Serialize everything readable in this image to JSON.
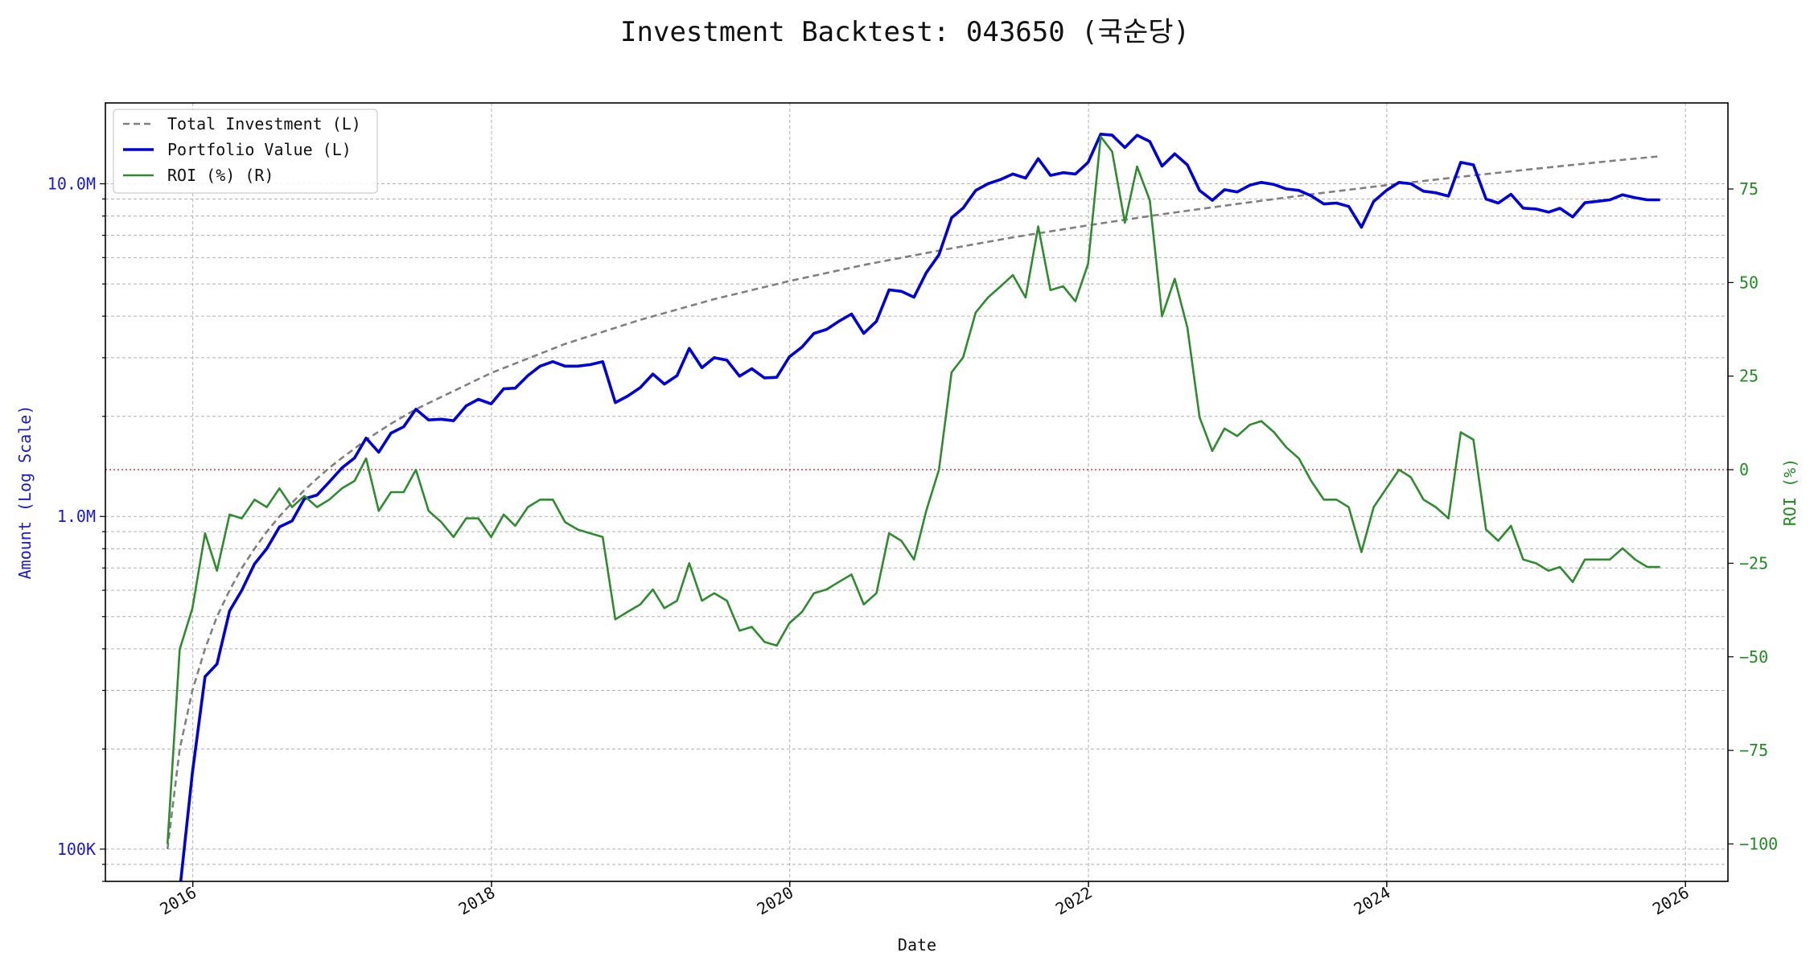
{
  "chart_data": {
    "type": "line",
    "title": "Investment Backtest: 043650 (국순당)",
    "xlabel": "Date",
    "ylabel_left": "Amount (Log Scale)",
    "ylabel_right": "ROI (%)",
    "yscale_left": "log",
    "ylim_left": [
      80000,
      17500000
    ],
    "ylim_right": [
      -110,
      98
    ],
    "xlim": [
      "2015-06-01",
      "2026-04-15"
    ],
    "x_ticks": [
      "2016",
      "2018",
      "2020",
      "2022",
      "2024",
      "2026"
    ],
    "left_ticks": [
      {
        "value": 100000,
        "label": "100K"
      },
      {
        "value": 1000000,
        "label": "1.0M"
      },
      {
        "value": 10000000,
        "label": "10.0M"
      }
    ],
    "right_ticks": [
      {
        "value": -100,
        "label": "−100"
      },
      {
        "value": -75,
        "label": "−75"
      },
      {
        "value": -50,
        "label": "−50"
      },
      {
        "value": -25,
        "label": "−25"
      },
      {
        "value": 0,
        "label": "0"
      },
      {
        "value": 25,
        "label": "25"
      },
      {
        "value": 50,
        "label": "50"
      },
      {
        "value": 75,
        "label": "75"
      }
    ],
    "grid": true,
    "legend_position": "top-left",
    "reference_line": {
      "axis": "right",
      "value": 0,
      "color": "#dd2222",
      "style": "dotted"
    },
    "colors": {
      "total_investment": "#808080",
      "portfolio_value": "#0000dd",
      "roi": "#2e8b2e",
      "left_axis": "#1a1acc",
      "right_axis": "#228b22"
    },
    "series": [
      {
        "name": "Total Investment (L)",
        "axis": "left",
        "style": "dashed",
        "x": [
          "2015-10-31",
          "2015-11-30",
          "2015-12-31",
          "2016-01-31",
          "2016-02-29",
          "2016-03-31",
          "2016-04-30",
          "2016-05-31",
          "2016-06-30",
          "2016-07-31",
          "2016-08-31",
          "2016-09-30",
          "2016-10-31",
          "2016-11-30",
          "2016-12-31",
          "2017-01-31",
          "2017-02-28",
          "2017-03-31",
          "2017-04-30",
          "2017-05-31",
          "2017-06-30",
          "2017-12-31",
          "2018-06-30",
          "2018-12-31",
          "2019-06-30",
          "2019-12-31",
          "2020-06-30",
          "2020-12-31",
          "2021-06-30",
          "2021-12-31",
          "2022-06-30",
          "2022-12-31",
          "2023-06-30",
          "2023-12-31",
          "2024-06-30",
          "2024-12-31",
          "2025-06-30",
          "2025-10-31"
        ],
        "values": [
          100000,
          200000,
          300000,
          400000,
          500000,
          600000,
          700000,
          800000,
          900000,
          1000000,
          1100000,
          1200000,
          1300000,
          1400000,
          1500000,
          1600000,
          1700000,
          1800000,
          1900000,
          2000000,
          2100000,
          2700000,
          3300000,
          3900000,
          4500000,
          5100000,
          5700000,
          6300000,
          6900000,
          7500000,
          8100000,
          8700000,
          9300000,
          9900000,
          10500000,
          11100000,
          11700000,
          12100000
        ]
      },
      {
        "name": "Portfolio Value (L)",
        "axis": "left",
        "style": "solid",
        "x": [
          "2015-11-30",
          "2015-12-31",
          "2016-01-31",
          "2016-02-29",
          "2016-03-31",
          "2016-04-30",
          "2016-05-31",
          "2016-06-30",
          "2016-07-31",
          "2016-08-31",
          "2016-09-30",
          "2016-10-31",
          "2016-11-30",
          "2016-12-31",
          "2017-01-31",
          "2017-02-28",
          "2017-03-31",
          "2017-04-30",
          "2017-05-31",
          "2017-06-30",
          "2017-07-31",
          "2017-08-31",
          "2017-09-30",
          "2017-10-31",
          "2017-11-30",
          "2017-12-31",
          "2018-01-31",
          "2018-02-28",
          "2018-03-31",
          "2018-04-30",
          "2018-05-31",
          "2018-06-30",
          "2018-07-31",
          "2018-08-31",
          "2018-09-30",
          "2018-10-31",
          "2018-11-30",
          "2018-12-31",
          "2019-01-31",
          "2019-02-28",
          "2019-03-31",
          "2019-04-30",
          "2019-05-31",
          "2019-06-30",
          "2019-07-31",
          "2019-08-31",
          "2019-09-30",
          "2019-10-31",
          "2019-11-30",
          "2019-12-31",
          "2020-01-31",
          "2020-02-29",
          "2020-03-31",
          "2020-04-30",
          "2020-05-31",
          "2020-06-30",
          "2020-07-31",
          "2020-08-31",
          "2020-09-30",
          "2020-10-31",
          "2020-11-30",
          "2020-12-31",
          "2021-01-31",
          "2021-02-28",
          "2021-03-31",
          "2021-04-30",
          "2021-05-31",
          "2021-06-30",
          "2021-07-31",
          "2021-08-31",
          "2021-09-30",
          "2021-10-31",
          "2021-11-30",
          "2021-12-31",
          "2022-01-31",
          "2022-02-28",
          "2022-03-31",
          "2022-04-30",
          "2022-05-31",
          "2022-06-30",
          "2022-07-31",
          "2022-08-31",
          "2022-09-30",
          "2022-10-31",
          "2022-11-30",
          "2022-12-31",
          "2023-01-31",
          "2023-02-28",
          "2023-03-31",
          "2023-04-30",
          "2023-05-31",
          "2023-06-30",
          "2023-07-31",
          "2023-08-31",
          "2023-09-30",
          "2023-10-31",
          "2023-11-30",
          "2023-12-31",
          "2024-01-31",
          "2024-02-29",
          "2024-03-31",
          "2024-04-30",
          "2024-05-31",
          "2024-06-30",
          "2024-07-31",
          "2024-08-31",
          "2024-09-30",
          "2024-10-31",
          "2024-11-30",
          "2024-12-31",
          "2025-01-31",
          "2025-02-28",
          "2025-03-31",
          "2025-04-30",
          "2025-05-31",
          "2025-06-30",
          "2025-07-31",
          "2025-08-31",
          "2025-09-30",
          "2025-10-31"
        ],
        "values": [
          75000,
          170000,
          330000,
          360000,
          520000,
          600000,
          720000,
          800000,
          930000,
          970000,
          1130000,
          1160000,
          1270000,
          1400000,
          1500000,
          1720000,
          1560000,
          1780000,
          1860000,
          2100000,
          1950000,
          1960000,
          1940000,
          2150000,
          2250000,
          2180000,
          2420000,
          2430000,
          2650000,
          2830000,
          2920000,
          2830000,
          2830000,
          2860000,
          2920000,
          2200000,
          2300000,
          2440000,
          2680000,
          2500000,
          2650000,
          3200000,
          2800000,
          3000000,
          2950000,
          2640000,
          2780000,
          2610000,
          2620000,
          3020000,
          3230000,
          3550000,
          3650000,
          3860000,
          4060000,
          3550000,
          3860000,
          4800000,
          4750000,
          4560000,
          5400000,
          6120000,
          7900000,
          8450000,
          9550000,
          10000000,
          10300000,
          10700000,
          10400000,
          11900000,
          10600000,
          10800000,
          10700000,
          11600000,
          14100000,
          14000000,
          12850000,
          14000000,
          13400000,
          11300000,
          12300000,
          11400000,
          9550000,
          8920000,
          9600000,
          9450000,
          9900000,
          10100000,
          9950000,
          9650000,
          9550000,
          9200000,
          8700000,
          8750000,
          8550000,
          7400000,
          8850000,
          9550000,
          10100000,
          10000000,
          9500000,
          9400000,
          9180000,
          11600000,
          11400000,
          9000000,
          8750000,
          9300000,
          8450000,
          8400000,
          8220000,
          8440000,
          7950000,
          8770000,
          8860000,
          8950000,
          9270000,
          9080000,
          8950000,
          8950000
        ]
      },
      {
        "name": "ROI (%) (R)",
        "axis": "right",
        "style": "solid",
        "x": [
          "2015-10-31",
          "2015-11-30",
          "2015-12-31",
          "2016-01-31",
          "2016-02-29",
          "2016-03-31",
          "2016-04-30",
          "2016-05-31",
          "2016-06-30",
          "2016-07-31",
          "2016-08-31",
          "2016-09-30",
          "2016-10-31",
          "2016-11-30",
          "2016-12-31",
          "2017-01-31",
          "2017-02-28",
          "2017-03-31",
          "2017-04-30",
          "2017-05-31",
          "2017-06-30",
          "2017-07-31",
          "2017-08-31",
          "2017-09-30",
          "2017-10-31",
          "2017-11-30",
          "2017-12-31",
          "2018-01-31",
          "2018-02-28",
          "2018-03-31",
          "2018-04-30",
          "2018-05-31",
          "2018-06-30",
          "2018-07-31",
          "2018-08-31",
          "2018-09-30",
          "2018-10-31",
          "2018-11-30",
          "2018-12-31",
          "2019-01-31",
          "2019-02-28",
          "2019-03-31",
          "2019-04-30",
          "2019-05-31",
          "2019-06-30",
          "2019-07-31",
          "2019-08-31",
          "2019-09-30",
          "2019-10-31",
          "2019-11-30",
          "2019-12-31",
          "2020-01-31",
          "2020-02-29",
          "2020-03-31",
          "2020-04-30",
          "2020-05-31",
          "2020-06-30",
          "2020-07-31",
          "2020-08-31",
          "2020-09-30",
          "2020-10-31",
          "2020-11-30",
          "2020-12-31",
          "2021-01-31",
          "2021-02-28",
          "2021-03-31",
          "2021-04-30",
          "2021-05-31",
          "2021-06-30",
          "2021-07-31",
          "2021-08-31",
          "2021-09-30",
          "2021-10-31",
          "2021-11-30",
          "2021-12-31",
          "2022-01-31",
          "2022-02-28",
          "2022-03-31",
          "2022-04-30",
          "2022-05-31",
          "2022-06-30",
          "2022-07-31",
          "2022-08-31",
          "2022-09-30",
          "2022-10-31",
          "2022-11-30",
          "2022-12-31",
          "2023-01-31",
          "2023-02-28",
          "2023-03-31",
          "2023-04-30",
          "2023-05-31",
          "2023-06-30",
          "2023-07-31",
          "2023-08-31",
          "2023-09-30",
          "2023-10-31",
          "2023-11-30",
          "2023-12-31",
          "2024-01-31",
          "2024-02-29",
          "2024-03-31",
          "2024-04-30",
          "2024-05-31",
          "2024-06-30",
          "2024-07-31",
          "2024-08-31",
          "2024-09-30",
          "2024-10-31",
          "2024-11-30",
          "2024-12-31",
          "2025-01-31",
          "2025-02-28",
          "2025-03-31",
          "2025-04-30",
          "2025-05-31",
          "2025-06-30",
          "2025-07-31",
          "2025-08-31",
          "2025-09-30",
          "2025-10-31"
        ],
        "values": [
          -100,
          -48,
          -37,
          -17,
          -27,
          -12,
          -13,
          -8,
          -10,
          -5,
          -10,
          -7,
          -10,
          -8,
          -5,
          -3,
          3,
          -11,
          -6,
          -6,
          0,
          -11,
          -14,
          -18,
          -13,
          -13,
          -18,
          -12,
          -15,
          -10,
          -8,
          -8,
          -14,
          -16,
          -17,
          -18,
          -40,
          -38,
          -36,
          -32,
          -37,
          -35,
          -25,
          -35,
          -33,
          -35,
          -43,
          -42,
          -46,
          -47,
          -41,
          -38,
          -33,
          -32,
          -30,
          -28,
          -36,
          -33,
          -17,
          -19,
          -24,
          -11,
          0,
          26,
          30,
          42,
          46,
          49,
          52,
          46,
          65,
          48,
          49,
          45,
          55,
          89,
          85,
          66,
          81,
          72,
          41,
          51,
          38,
          14,
          5,
          11,
          9,
          12,
          13,
          10,
          6,
          3,
          -3,
          -8,
          -8,
          -10,
          -22,
          -10,
          -5,
          0,
          -2,
          -8,
          -10,
          -13,
          10,
          8,
          -16,
          -19,
          -15,
          -24,
          -25,
          -27,
          -26,
          -30,
          -24,
          -24,
          -24,
          -21,
          -24,
          -26,
          -26
        ]
      }
    ]
  }
}
